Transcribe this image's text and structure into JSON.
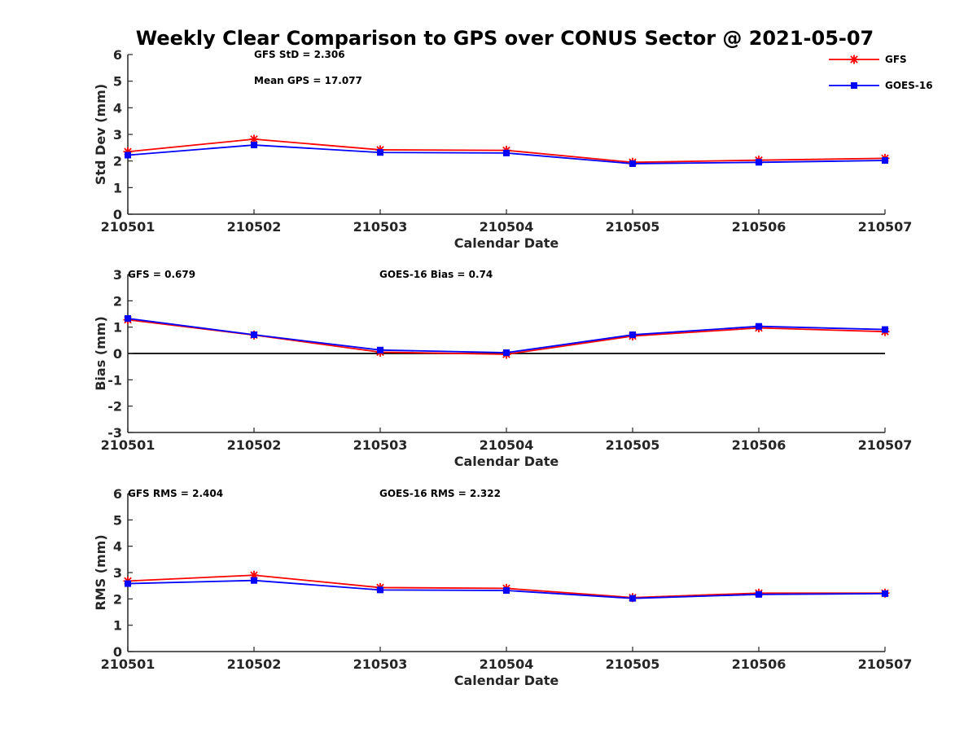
{
  "title": "Weekly Clear Comparison to GPS over CONUS Sector @ 2021-05-07",
  "legend": [
    {
      "label": "GFS",
      "color": "#ff0000",
      "marker": "asterisk"
    },
    {
      "label": "GOES-16",
      "color": "#0000ff",
      "marker": "square"
    }
  ],
  "chart_data": [
    {
      "type": "line",
      "name": "std",
      "categories": [
        "210501",
        "210502",
        "210503",
        "210504",
        "210505",
        "210506",
        "210507"
      ],
      "series": [
        {
          "name": "GFS",
          "values": [
            2.35,
            2.82,
            2.42,
            2.4,
            1.95,
            2.03,
            2.1
          ]
        },
        {
          "name": "GOES-16",
          "values": [
            2.22,
            2.6,
            2.32,
            2.3,
            1.9,
            1.95,
            2.02
          ]
        }
      ],
      "xlabel": "Calendar Date",
      "ylabel": "Std Dev (mm)",
      "ylim": [
        0,
        6
      ],
      "yticks": [
        "0",
        "1",
        "2",
        "3",
        "4",
        "5",
        "6"
      ],
      "annotations": [
        "GFS StD = 2.306",
        "Mean GPS = 17.077"
      ],
      "zero_line": false
    },
    {
      "type": "line",
      "name": "bias",
      "categories": [
        "210501",
        "210502",
        "210503",
        "210504",
        "210505",
        "210506",
        "210507"
      ],
      "series": [
        {
          "name": "GFS",
          "values": [
            1.28,
            0.7,
            0.05,
            -0.03,
            0.66,
            0.97,
            0.83
          ]
        },
        {
          "name": "GOES-16",
          "values": [
            1.33,
            0.71,
            0.13,
            0.03,
            0.71,
            1.03,
            0.91
          ]
        }
      ],
      "xlabel": "Calendar Date",
      "ylabel": "Bias (mm)",
      "ylim": [
        -3,
        3
      ],
      "yticks": [
        "-3",
        "-2",
        "-1",
        "0",
        "1",
        "2",
        "3"
      ],
      "annotations": [
        "GFS = 0.679",
        "GOES-16 Bias  = 0.74"
      ],
      "zero_line": true
    },
    {
      "type": "line",
      "name": "rms",
      "categories": [
        "210501",
        "210502",
        "210503",
        "210504",
        "210505",
        "210506",
        "210507"
      ],
      "series": [
        {
          "name": "GFS",
          "values": [
            2.68,
            2.9,
            2.43,
            2.4,
            2.05,
            2.22,
            2.22
          ]
        },
        {
          "name": "GOES-16",
          "values": [
            2.58,
            2.7,
            2.34,
            2.32,
            2.02,
            2.17,
            2.2
          ]
        }
      ],
      "xlabel": "Calendar Date",
      "ylabel": "RMS (mm)",
      "ylim": [
        0,
        6
      ],
      "yticks": [
        "0",
        "1",
        "2",
        "3",
        "4",
        "5",
        "6"
      ],
      "annotations": [
        "GFS RMS = 2.404",
        "GOES-16 RMS = 2.322"
      ],
      "zero_line": false
    }
  ]
}
